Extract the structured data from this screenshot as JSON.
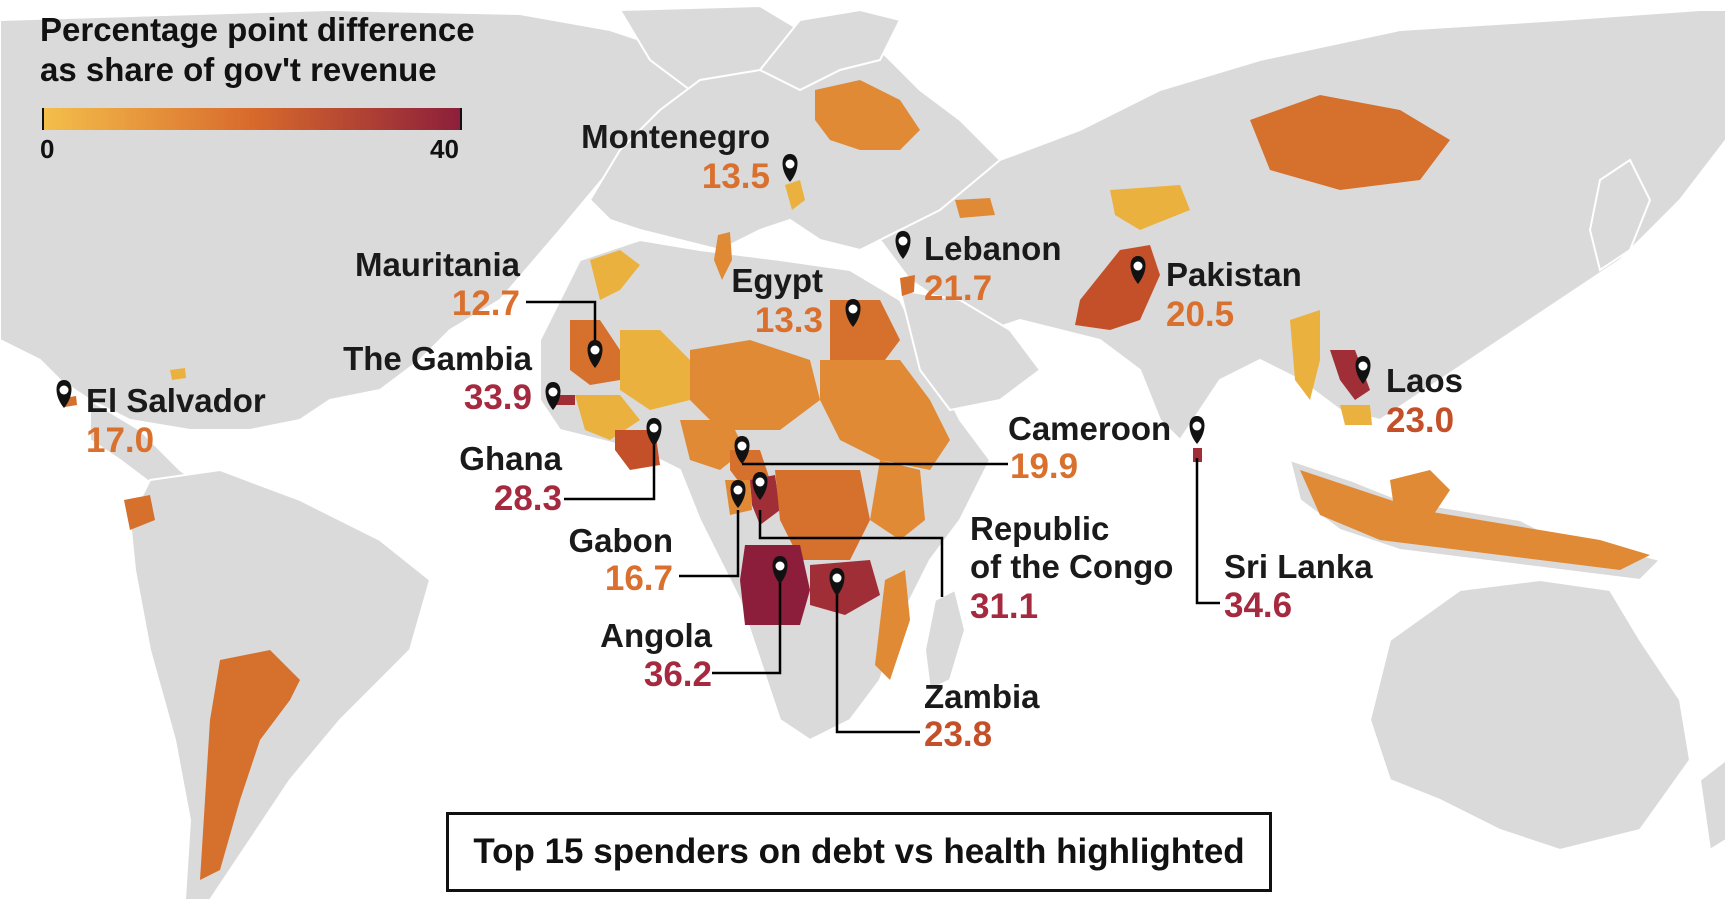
{
  "legend": {
    "title_line1": "Percentage point difference",
    "title_line2": "as share of gov't revenue",
    "min_label": "0",
    "max_label": "40",
    "color_min": "#f4bf4b",
    "color_mid": "#d86a2c",
    "color_max": "#8c1e3b"
  },
  "footer": {
    "text": "Top 15 spenders on debt vs health highlighted"
  },
  "colors": {
    "land_gray": "#dadada",
    "low": "#ebb13f",
    "mid_low": "#e08a35",
    "mid": "#d5702d",
    "mid_high": "#c4502a",
    "high": "#a02e36",
    "max": "#8c1e3b",
    "text_low_mid": "#d9702e",
    "text_high": "#a52a3f"
  },
  "highlighted_countries": [
    {
      "name": "Montenegro",
      "value": "13.5",
      "value_color": "#d9702e"
    },
    {
      "name": "Mauritania",
      "value": "12.7",
      "value_color": "#d9702e"
    },
    {
      "name": "The Gambia",
      "value": "33.9",
      "value_color": "#a52a3f"
    },
    {
      "name": "El Salvador",
      "value": "17.0",
      "value_color": "#d9702e"
    },
    {
      "name": "Egypt",
      "value": "13.3",
      "value_color": "#d9702e"
    },
    {
      "name": "Lebanon",
      "value": "21.7",
      "value_color": "#d9702e"
    },
    {
      "name": "Pakistan",
      "value": "20.5",
      "value_color": "#d9702e"
    },
    {
      "name": "Laos",
      "value": "23.0",
      "value_color": "#c4502a"
    },
    {
      "name": "Ghana",
      "value": "28.3",
      "value_color": "#a52a3f"
    },
    {
      "name": "Cameroon",
      "value": "19.9",
      "value_color": "#d9702e"
    },
    {
      "name": "Gabon",
      "value": "16.7",
      "value_color": "#d9702e"
    },
    {
      "name": "Republic",
      "name_line2": "of the Congo",
      "value": "31.1",
      "value_color": "#a52a3f"
    },
    {
      "name": "Sri Lanka",
      "value": "34.6",
      "value_color": "#a52a3f"
    },
    {
      "name": "Angola",
      "value": "36.2",
      "value_color": "#a52a3f"
    },
    {
      "name": "Zambia",
      "value": "23.8",
      "value_color": "#c4502a"
    }
  ]
}
